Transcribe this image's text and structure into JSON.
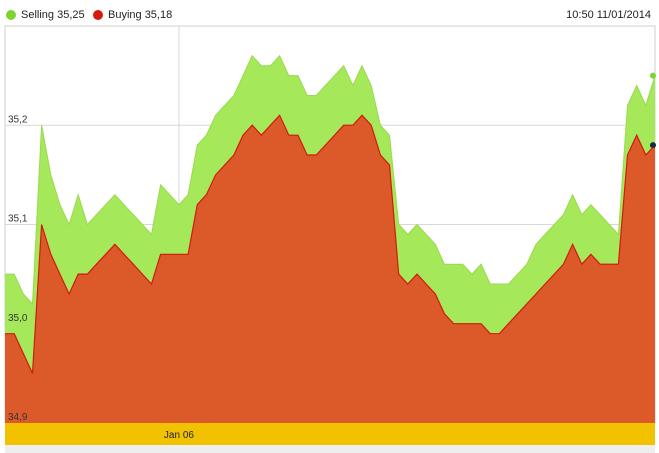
{
  "legend": {
    "selling": {
      "label": "Selling 35,25",
      "color": "#7cd42e"
    },
    "buying": {
      "label": "Buying 35,18",
      "color": "#d61a0c"
    }
  },
  "timestamp": "10:50 11/01/2014",
  "colors": {
    "selling_area": "#a5e85a",
    "buying_area": "#dc5a2a",
    "buying_line": "#d11a0b",
    "navigator_bar": "#f2c200",
    "grid": "#d8d8d8"
  },
  "chart_data": {
    "type": "area",
    "ylim": [
      34.9,
      35.3
    ],
    "y_ticks": [
      {
        "value": 35.2,
        "label": "35,2"
      },
      {
        "value": 35.1,
        "label": "35,1"
      },
      {
        "value": 35.0,
        "label": "35,0"
      },
      {
        "value": 34.9,
        "label": "34,9"
      }
    ],
    "x_ticks": [
      {
        "index": 19,
        "label": "Jan 06"
      }
    ],
    "series": [
      {
        "name": "Selling",
        "values": [
          35.05,
          35.05,
          35.03,
          35.02,
          35.2,
          35.15,
          35.12,
          35.1,
          35.13,
          35.1,
          35.11,
          35.12,
          35.13,
          35.12,
          35.11,
          35.1,
          35.09,
          35.14,
          35.13,
          35.12,
          35.13,
          35.18,
          35.19,
          35.21,
          35.22,
          35.23,
          35.25,
          35.27,
          35.26,
          35.26,
          35.27,
          35.25,
          35.25,
          35.23,
          35.23,
          35.24,
          35.25,
          35.26,
          35.24,
          35.26,
          35.24,
          35.2,
          35.19,
          35.1,
          35.09,
          35.1,
          35.09,
          35.08,
          35.06,
          35.06,
          35.06,
          35.05,
          35.06,
          35.04,
          35.04,
          35.04,
          35.05,
          35.06,
          35.08,
          35.09,
          35.1,
          35.11,
          35.13,
          35.11,
          35.12,
          35.11,
          35.1,
          35.09,
          35.22,
          35.24,
          35.22,
          35.25
        ]
      },
      {
        "name": "Buying",
        "values": [
          34.99,
          34.99,
          34.97,
          34.95,
          35.1,
          35.07,
          35.05,
          35.03,
          35.05,
          35.05,
          35.06,
          35.07,
          35.08,
          35.07,
          35.06,
          35.05,
          35.04,
          35.07,
          35.07,
          35.07,
          35.07,
          35.12,
          35.13,
          35.15,
          35.16,
          35.17,
          35.19,
          35.2,
          35.19,
          35.2,
          35.21,
          35.19,
          35.19,
          35.17,
          35.17,
          35.18,
          35.19,
          35.2,
          35.2,
          35.21,
          35.2,
          35.17,
          35.16,
          35.05,
          35.04,
          35.05,
          35.04,
          35.03,
          35.01,
          35.0,
          35.0,
          35.0,
          35.0,
          34.99,
          34.99,
          35.0,
          35.01,
          35.02,
          35.03,
          35.04,
          35.05,
          35.06,
          35.08,
          35.06,
          35.07,
          35.06,
          35.06,
          35.06,
          35.17,
          35.19,
          35.17,
          35.18
        ]
      }
    ]
  }
}
